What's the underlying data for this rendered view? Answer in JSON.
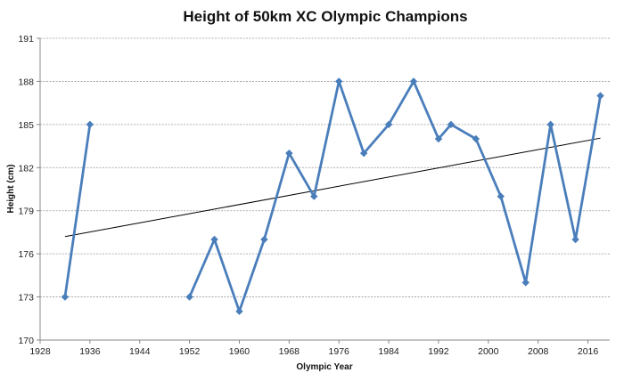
{
  "chart_data": {
    "type": "line",
    "title": "Height of 50km XC Olympic Champions",
    "xlabel": "Olympic Year",
    "ylabel": "Height (cm)",
    "xlim": [
      1928,
      2019.5
    ],
    "ylim": [
      170,
      191
    ],
    "x_ticks": [
      1928,
      1936,
      1944,
      1952,
      1960,
      1968,
      1976,
      1984,
      1992,
      2000,
      2008,
      2016
    ],
    "y_ticks": [
      170,
      173,
      176,
      179,
      182,
      185,
      188,
      191
    ],
    "grid": "horizontal dashed",
    "legend": "none",
    "series": [
      {
        "color": "#4a7ebb",
        "marker": "diamond",
        "segments": [
          [
            {
              "x": 1932,
              "y": 173
            },
            {
              "x": 1936,
              "y": 185
            }
          ],
          [
            {
              "x": 1952,
              "y": 173
            },
            {
              "x": 1956,
              "y": 177
            },
            {
              "x": 1960,
              "y": 172
            },
            {
              "x": 1964,
              "y": 177
            },
            {
              "x": 1968,
              "y": 183
            },
            {
              "x": 1972,
              "y": 180
            },
            {
              "x": 1976,
              "y": 188
            },
            {
              "x": 1980,
              "y": 183
            },
            {
              "x": 1984,
              "y": 185
            },
            {
              "x": 1988,
              "y": 188
            },
            {
              "x": 1992,
              "y": 184
            },
            {
              "x": 1994,
              "y": 185
            },
            {
              "x": 1998,
              "y": 184
            },
            {
              "x": 2002,
              "y": 180
            },
            {
              "x": 2006,
              "y": 174
            },
            {
              "x": 2010,
              "y": 185
            },
            {
              "x": 2014,
              "y": 177
            },
            {
              "x": 2018,
              "y": 187
            }
          ]
        ]
      }
    ],
    "trendline": {
      "type": "linear",
      "color": "#000000",
      "from": {
        "x": 1932,
        "y": 177.2
      },
      "to": {
        "x": 2018,
        "y": 184.05
      }
    }
  }
}
